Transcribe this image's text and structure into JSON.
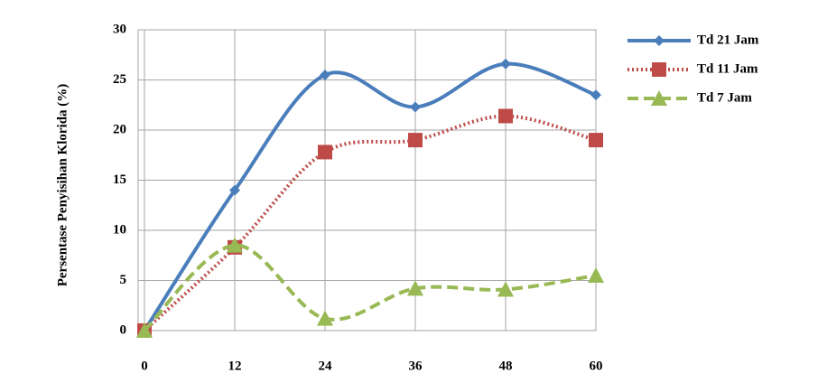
{
  "chart_data": {
    "type": "line",
    "y_label": "Persentase Penyisihan Klorida (%)",
    "x": [
      0,
      12,
      24,
      36,
      48,
      60
    ],
    "xlim": [
      0,
      60
    ],
    "xticks": [
      0,
      12,
      24,
      36,
      48,
      60
    ],
    "ylim": [
      0,
      30
    ],
    "yticks": [
      0,
      5,
      10,
      15,
      20,
      25,
      30
    ],
    "grid": true,
    "smooth": true,
    "legend": "right",
    "series": [
      {
        "name": "Td 21 Jam",
        "color": "#4a7ebb",
        "line_style": "solid",
        "marker": "diamond",
        "values": [
          0,
          14,
          25.5,
          22.3,
          26.6,
          23.5
        ]
      },
      {
        "name": "Td 11 Jam",
        "color": "#be4b48",
        "line_style": "dotted",
        "marker": "square",
        "values": [
          0,
          8.3,
          17.8,
          19,
          21.4,
          19
        ]
      },
      {
        "name": "Td 7 Jam",
        "color": "#98b954",
        "line_style": "dashed",
        "marker": "triangle",
        "values": [
          0,
          8.5,
          1.2,
          4.2,
          4.1,
          5.5
        ]
      }
    ]
  }
}
